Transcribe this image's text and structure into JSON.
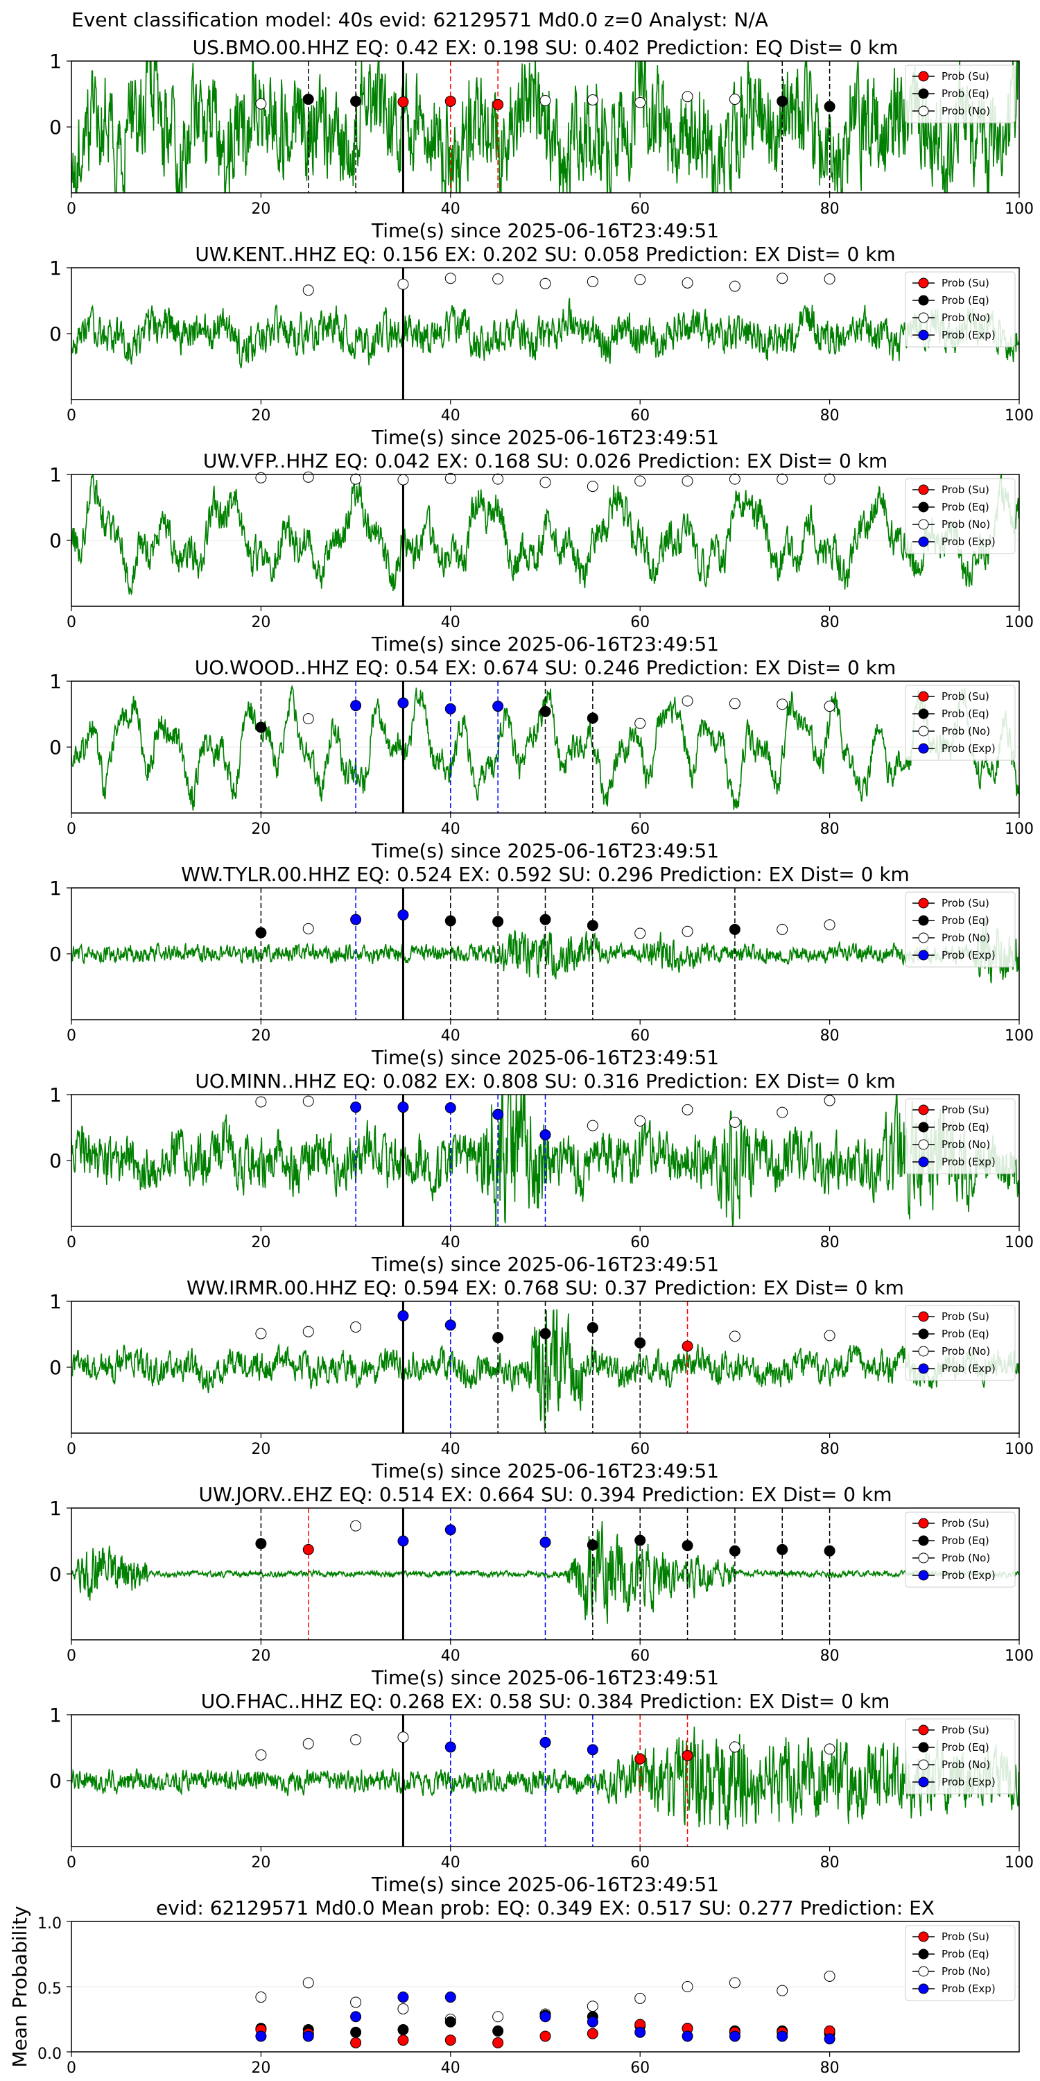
{
  "suptitle": "Event classification model: 40s evid: 62129571 Md0.0 z=0 Analyst: N/A",
  "colors": {
    "waveform": "#008000",
    "su": "#ff0000",
    "eq": "#000000",
    "no": "#ffffff",
    "exp": "#0000ff",
    "pick": "#000000"
  },
  "legend": [
    "Prob (Su)",
    "Prob (Eq)",
    "Prob (No)",
    "Prob (Exp)"
  ],
  "chart_data": [
    {
      "type": "line",
      "station": "US.BMO.00.HHZ",
      "title": "US.BMO.00.HHZ   EQ: 0.42  EX: 0.198  SU: 0.402   Prediction: EQ    Dist= 0 km",
      "xlabel": "Time(s) since 2025-06-16T23:49:51",
      "xlim": [
        0,
        100
      ],
      "ylim": [
        -1,
        1
      ],
      "xticks": [
        0,
        20,
        40,
        60,
        80,
        100
      ],
      "yticks": [
        0,
        1
      ],
      "pick_time": 35,
      "legend_items": [
        0,
        1,
        2
      ],
      "trace": {
        "amp": 0.55,
        "noise": 0.7,
        "bursts": []
      },
      "points": [
        {
          "x": 20,
          "y": 0.35,
          "cls": "no"
        },
        {
          "x": 25,
          "y": 0.42,
          "cls": "eq"
        },
        {
          "x": 30,
          "y": 0.39,
          "cls": "eq"
        },
        {
          "x": 35,
          "y": 0.38,
          "cls": "su"
        },
        {
          "x": 40,
          "y": 0.39,
          "cls": "su"
        },
        {
          "x": 45,
          "y": 0.34,
          "cls": "su"
        },
        {
          "x": 50,
          "y": 0.4,
          "cls": "no"
        },
        {
          "x": 55,
          "y": 0.41,
          "cls": "no"
        },
        {
          "x": 60,
          "y": 0.37,
          "cls": "no"
        },
        {
          "x": 65,
          "y": 0.46,
          "cls": "no"
        },
        {
          "x": 70,
          "y": 0.42,
          "cls": "no"
        },
        {
          "x": 75,
          "y": 0.39,
          "cls": "eq"
        },
        {
          "x": 80,
          "y": 0.31,
          "cls": "eq"
        }
      ]
    },
    {
      "type": "line",
      "station": "UW.KENT..HHZ",
      "title": "UW.KENT..HHZ   EQ: 0.156  EX: 0.202  SU: 0.058   Prediction: EX    Dist= 0 km",
      "xlabel": "Time(s) since 2025-06-16T23:49:51",
      "xlim": [
        0,
        100
      ],
      "ylim": [
        -1,
        1
      ],
      "xticks": [
        0,
        20,
        40,
        60,
        80,
        100
      ],
      "yticks": [
        0,
        1
      ],
      "pick_time": 35,
      "legend_items": [
        0,
        1,
        2,
        3
      ],
      "trace": {
        "amp": 0.18,
        "noise": 0.25,
        "bursts": []
      },
      "points": [
        {
          "x": 25,
          "y": 0.66,
          "cls": "no"
        },
        {
          "x": 35,
          "y": 0.75,
          "cls": "no"
        },
        {
          "x": 40,
          "y": 0.84,
          "cls": "no"
        },
        {
          "x": 45,
          "y": 0.83,
          "cls": "no"
        },
        {
          "x": 50,
          "y": 0.76,
          "cls": "no"
        },
        {
          "x": 55,
          "y": 0.79,
          "cls": "no"
        },
        {
          "x": 60,
          "y": 0.82,
          "cls": "no"
        },
        {
          "x": 65,
          "y": 0.77,
          "cls": "no"
        },
        {
          "x": 70,
          "y": 0.72,
          "cls": "no"
        },
        {
          "x": 75,
          "y": 0.84,
          "cls": "no"
        },
        {
          "x": 80,
          "y": 0.83,
          "cls": "no"
        }
      ]
    },
    {
      "type": "line",
      "station": "UW.VFP..HHZ",
      "title": "UW.VFP..HHZ   EQ: 0.042  EX: 0.168  SU: 0.026   Prediction: EX    Dist= 0 km",
      "xlabel": "Time(s) since 2025-06-16T23:49:51",
      "xlim": [
        0,
        100
      ],
      "ylim": [
        -1,
        1
      ],
      "xticks": [
        0,
        20,
        40,
        60,
        80,
        100
      ],
      "yticks": [
        0,
        1
      ],
      "pick_time": 35,
      "legend_items": [
        0,
        1,
        2,
        3
      ],
      "trace": {
        "amp": 0.6,
        "noise": 0.25,
        "bursts": []
      },
      "points": [
        {
          "x": 20,
          "y": 0.95,
          "cls": "no"
        },
        {
          "x": 25,
          "y": 0.96,
          "cls": "no"
        },
        {
          "x": 30,
          "y": 0.93,
          "cls": "no"
        },
        {
          "x": 35,
          "y": 0.92,
          "cls": "no"
        },
        {
          "x": 40,
          "y": 0.94,
          "cls": "no"
        },
        {
          "x": 45,
          "y": 0.93,
          "cls": "no"
        },
        {
          "x": 50,
          "y": 0.88,
          "cls": "no"
        },
        {
          "x": 55,
          "y": 0.82,
          "cls": "no"
        },
        {
          "x": 60,
          "y": 0.9,
          "cls": "no"
        },
        {
          "x": 65,
          "y": 0.9,
          "cls": "no"
        },
        {
          "x": 70,
          "y": 0.93,
          "cls": "no"
        },
        {
          "x": 75,
          "y": 0.93,
          "cls": "no"
        },
        {
          "x": 80,
          "y": 0.93,
          "cls": "no"
        }
      ]
    },
    {
      "type": "line",
      "station": "UO.WOOD..HHZ",
      "title": "UO.WOOD..HHZ   EQ: 0.54  EX: 0.674  SU: 0.246   Prediction: EX    Dist= 0 km",
      "xlabel": "Time(s) since 2025-06-16T23:49:51",
      "xlim": [
        0,
        100
      ],
      "ylim": [
        -1,
        1
      ],
      "xticks": [
        0,
        20,
        40,
        60,
        80,
        100
      ],
      "yticks": [
        0,
        1
      ],
      "pick_time": 35,
      "legend_items": [
        0,
        1,
        2,
        3
      ],
      "trace": {
        "amp": 0.7,
        "noise": 0.2,
        "bursts": []
      },
      "points": [
        {
          "x": 20,
          "y": 0.3,
          "cls": "eq"
        },
        {
          "x": 25,
          "y": 0.43,
          "cls": "no"
        },
        {
          "x": 30,
          "y": 0.63,
          "cls": "exp"
        },
        {
          "x": 35,
          "y": 0.67,
          "cls": "exp"
        },
        {
          "x": 40,
          "y": 0.58,
          "cls": "exp"
        },
        {
          "x": 45,
          "y": 0.62,
          "cls": "exp"
        },
        {
          "x": 50,
          "y": 0.54,
          "cls": "eq"
        },
        {
          "x": 55,
          "y": 0.44,
          "cls": "eq"
        },
        {
          "x": 60,
          "y": 0.36,
          "cls": "no"
        },
        {
          "x": 65,
          "y": 0.7,
          "cls": "no"
        },
        {
          "x": 70,
          "y": 0.66,
          "cls": "no"
        },
        {
          "x": 75,
          "y": 0.65,
          "cls": "no"
        },
        {
          "x": 80,
          "y": 0.62,
          "cls": "no"
        }
      ]
    },
    {
      "type": "line",
      "station": "WW.TYLR.00.HHZ",
      "title": "WW.TYLR.00.HHZ   EQ: 0.524  EX: 0.592  SU: 0.296   Prediction: EX    Dist= 0 km",
      "xlabel": "Time(s) since 2025-06-16T23:49:51",
      "xlim": [
        0,
        100
      ],
      "ylim": [
        -1,
        1
      ],
      "xticks": [
        0,
        20,
        40,
        60,
        80,
        100
      ],
      "yticks": [
        0,
        1
      ],
      "pick_time": 35,
      "legend_items": [
        0,
        1,
        2,
        3
      ],
      "trace": {
        "amp": 0.03,
        "noise": 0.12,
        "bursts": [
          [
            44,
            56,
            0.25
          ],
          [
            60,
            66,
            0.15
          ],
          [
            95,
            100,
            0.4
          ]
        ]
      },
      "points": [
        {
          "x": 20,
          "y": 0.32,
          "cls": "eq"
        },
        {
          "x": 25,
          "y": 0.38,
          "cls": "no"
        },
        {
          "x": 30,
          "y": 0.52,
          "cls": "exp"
        },
        {
          "x": 35,
          "y": 0.59,
          "cls": "exp"
        },
        {
          "x": 40,
          "y": 0.5,
          "cls": "eq"
        },
        {
          "x": 45,
          "y": 0.49,
          "cls": "eq"
        },
        {
          "x": 50,
          "y": 0.52,
          "cls": "eq"
        },
        {
          "x": 55,
          "y": 0.43,
          "cls": "eq"
        },
        {
          "x": 60,
          "y": 0.31,
          "cls": "no"
        },
        {
          "x": 65,
          "y": 0.34,
          "cls": "no"
        },
        {
          "x": 70,
          "y": 0.37,
          "cls": "eq"
        },
        {
          "x": 75,
          "y": 0.37,
          "cls": "no"
        },
        {
          "x": 80,
          "y": 0.44,
          "cls": "no"
        }
      ]
    },
    {
      "type": "line",
      "station": "UO.MINN..HHZ",
      "title": "UO.MINN..HHZ   EQ: 0.082  EX: 0.808  SU: 0.316   Prediction: EX    Dist= 0 km",
      "xlabel": "Time(s) since 2025-06-16T23:49:51",
      "xlim": [
        0,
        100
      ],
      "ylim": [
        -1,
        1
      ],
      "xticks": [
        0,
        20,
        40,
        60,
        80,
        100
      ],
      "yticks": [
        0,
        1
      ],
      "pick_time": 35,
      "legend_items": [
        0,
        1,
        2,
        3
      ],
      "trace": {
        "amp": 0.2,
        "noise": 0.35,
        "bursts": [
          [
            43,
            50,
            0.8
          ],
          [
            68,
            72,
            0.6
          ],
          [
            85,
            95,
            0.5
          ]
        ]
      },
      "points": [
        {
          "x": 20,
          "y": 0.89,
          "cls": "no"
        },
        {
          "x": 25,
          "y": 0.9,
          "cls": "no"
        },
        {
          "x": 30,
          "y": 0.81,
          "cls": "exp"
        },
        {
          "x": 35,
          "y": 0.81,
          "cls": "exp"
        },
        {
          "x": 40,
          "y": 0.8,
          "cls": "exp"
        },
        {
          "x": 45,
          "y": 0.7,
          "cls": "exp"
        },
        {
          "x": 50,
          "y": 0.39,
          "cls": "exp"
        },
        {
          "x": 55,
          "y": 0.53,
          "cls": "no"
        },
        {
          "x": 60,
          "y": 0.6,
          "cls": "no"
        },
        {
          "x": 65,
          "y": 0.77,
          "cls": "no"
        },
        {
          "x": 70,
          "y": 0.58,
          "cls": "no"
        },
        {
          "x": 75,
          "y": 0.73,
          "cls": "no"
        },
        {
          "x": 80,
          "y": 0.91,
          "cls": "no"
        }
      ]
    },
    {
      "type": "line",
      "station": "WW.IRMR.00.HHZ",
      "title": "WW.IRMR.00.HHZ   EQ: 0.594  EX: 0.768  SU: 0.37   Prediction: EX    Dist= 0 km",
      "xlabel": "Time(s) since 2025-06-16T23:49:51",
      "xlim": [
        0,
        100
      ],
      "ylim": [
        -1,
        1
      ],
      "xticks": [
        0,
        20,
        40,
        60,
        80,
        100
      ],
      "yticks": [
        0,
        1
      ],
      "pick_time": 35,
      "legend_items": [
        0,
        1,
        2,
        3
      ],
      "trace": {
        "amp": 0.15,
        "noise": 0.2,
        "bursts": [
          [
            48,
            54,
            0.7
          ]
        ]
      },
      "points": [
        {
          "x": 20,
          "y": 0.51,
          "cls": "no"
        },
        {
          "x": 25,
          "y": 0.54,
          "cls": "no"
        },
        {
          "x": 30,
          "y": 0.61,
          "cls": "no"
        },
        {
          "x": 35,
          "y": 0.78,
          "cls": "exp"
        },
        {
          "x": 40,
          "y": 0.64,
          "cls": "exp"
        },
        {
          "x": 45,
          "y": 0.45,
          "cls": "eq"
        },
        {
          "x": 50,
          "y": 0.51,
          "cls": "eq"
        },
        {
          "x": 55,
          "y": 0.6,
          "cls": "eq"
        },
        {
          "x": 60,
          "y": 0.37,
          "cls": "eq"
        },
        {
          "x": 65,
          "y": 0.32,
          "cls": "su"
        },
        {
          "x": 70,
          "y": 0.47,
          "cls": "no"
        },
        {
          "x": 80,
          "y": 0.48,
          "cls": "no"
        }
      ]
    },
    {
      "type": "line",
      "station": "UW.JORV..EHZ",
      "title": "UW.JORV..EHZ   EQ: 0.514  EX: 0.664  SU: 0.394   Prediction: EX    Dist= 0 km",
      "xlabel": "Time(s) since 2025-06-16T23:49:51",
      "xlim": [
        0,
        100
      ],
      "ylim": [
        -1,
        1
      ],
      "xticks": [
        0,
        20,
        40,
        60,
        80,
        100
      ],
      "yticks": [
        0,
        1
      ],
      "pick_time": 35,
      "legend_items": [
        0,
        1,
        2,
        3
      ],
      "trace": {
        "amp": 0.01,
        "noise": 0.04,
        "bursts": [
          [
            0,
            8,
            0.4
          ],
          [
            52,
            64,
            0.65
          ],
          [
            64,
            70,
            0.25
          ]
        ]
      },
      "points": [
        {
          "x": 20,
          "y": 0.46,
          "cls": "eq"
        },
        {
          "x": 25,
          "y": 0.37,
          "cls": "su"
        },
        {
          "x": 30,
          "y": 0.73,
          "cls": "no"
        },
        {
          "x": 35,
          "y": 0.5,
          "cls": "exp"
        },
        {
          "x": 40,
          "y": 0.67,
          "cls": "exp"
        },
        {
          "x": 50,
          "y": 0.48,
          "cls": "exp"
        },
        {
          "x": 55,
          "y": 0.44,
          "cls": "eq"
        },
        {
          "x": 60,
          "y": 0.51,
          "cls": "eq"
        },
        {
          "x": 65,
          "y": 0.43,
          "cls": "eq"
        },
        {
          "x": 70,
          "y": 0.35,
          "cls": "eq"
        },
        {
          "x": 75,
          "y": 0.37,
          "cls": "eq"
        },
        {
          "x": 80,
          "y": 0.35,
          "cls": "eq"
        }
      ]
    },
    {
      "type": "line",
      "station": "UO.FHAC..HHZ",
      "title": "UO.FHAC..HHZ   EQ: 0.268  EX: 0.58  SU: 0.384   Prediction: EX    Dist= 0 km",
      "xlabel": "Time(s) since 2025-06-16T23:49:51",
      "xlim": [
        0,
        100
      ],
      "ylim": [
        -1,
        1
      ],
      "xticks": [
        0,
        20,
        40,
        60,
        80,
        100
      ],
      "yticks": [
        0,
        1
      ],
      "pick_time": 35,
      "legend_items": [
        0,
        1,
        2,
        3
      ],
      "trace": {
        "amp": 0.04,
        "noise": 0.15,
        "bursts": [
          [
            55,
            100,
            0.55
          ]
        ]
      },
      "points": [
        {
          "x": 20,
          "y": 0.39,
          "cls": "no"
        },
        {
          "x": 25,
          "y": 0.56,
          "cls": "no"
        },
        {
          "x": 30,
          "y": 0.62,
          "cls": "no"
        },
        {
          "x": 35,
          "y": 0.66,
          "cls": "no"
        },
        {
          "x": 40,
          "y": 0.51,
          "cls": "exp"
        },
        {
          "x": 50,
          "y": 0.58,
          "cls": "exp"
        },
        {
          "x": 55,
          "y": 0.47,
          "cls": "exp"
        },
        {
          "x": 60,
          "y": 0.33,
          "cls": "su"
        },
        {
          "x": 65,
          "y": 0.38,
          "cls": "su"
        },
        {
          "x": 70,
          "y": 0.51,
          "cls": "no"
        },
        {
          "x": 80,
          "y": 0.48,
          "cls": "no"
        }
      ]
    },
    {
      "type": "scatter",
      "station": "mean",
      "title": "evid: 62129571  Md0.0   Mean prob:   EQ: 0.349  EX: 0.517  SU: 0.277   Prediction: EX",
      "xlabel": "",
      "ylabel": "Mean Probability",
      "xlim": [
        0,
        100
      ],
      "ylim": [
        0,
        1
      ],
      "xticks": [
        0,
        20,
        40,
        60,
        80
      ],
      "yticks": [
        0.0,
        0.5,
        1.0
      ],
      "ytick_labels": [
        "0.0",
        "0.5",
        "1.0"
      ],
      "legend_items": [
        0,
        1,
        2,
        3
      ],
      "series": [
        {
          "cls": "no",
          "x": [
            20,
            25,
            30,
            35,
            40,
            45,
            50,
            55,
            60,
            65,
            70,
            75,
            80
          ],
          "y": [
            0.42,
            0.53,
            0.38,
            0.33,
            0.25,
            0.27,
            0.29,
            0.35,
            0.41,
            0.5,
            0.53,
            0.47,
            0.58
          ]
        },
        {
          "cls": "eq",
          "x": [
            20,
            25,
            30,
            35,
            40,
            45,
            50,
            55,
            60,
            65,
            70,
            75,
            80
          ],
          "y": [
            0.18,
            0.17,
            0.15,
            0.17,
            0.23,
            0.16,
            0.28,
            0.27,
            0.2,
            0.18,
            0.16,
            0.16,
            0.14
          ]
        },
        {
          "cls": "su",
          "x": [
            20,
            25,
            30,
            35,
            40,
            45,
            50,
            55,
            60,
            65,
            70,
            75,
            80
          ],
          "y": [
            0.17,
            0.14,
            0.07,
            0.09,
            0.09,
            0.07,
            0.12,
            0.14,
            0.21,
            0.18,
            0.15,
            0.15,
            0.16
          ]
        },
        {
          "cls": "exp",
          "x": [
            20,
            25,
            30,
            35,
            40,
            50,
            55,
            60,
            65,
            70,
            75,
            80
          ],
          "y": [
            0.12,
            0.12,
            0.27,
            0.42,
            0.42,
            0.27,
            0.23,
            0.15,
            0.12,
            0.12,
            0.12,
            0.1
          ]
        }
      ]
    }
  ]
}
